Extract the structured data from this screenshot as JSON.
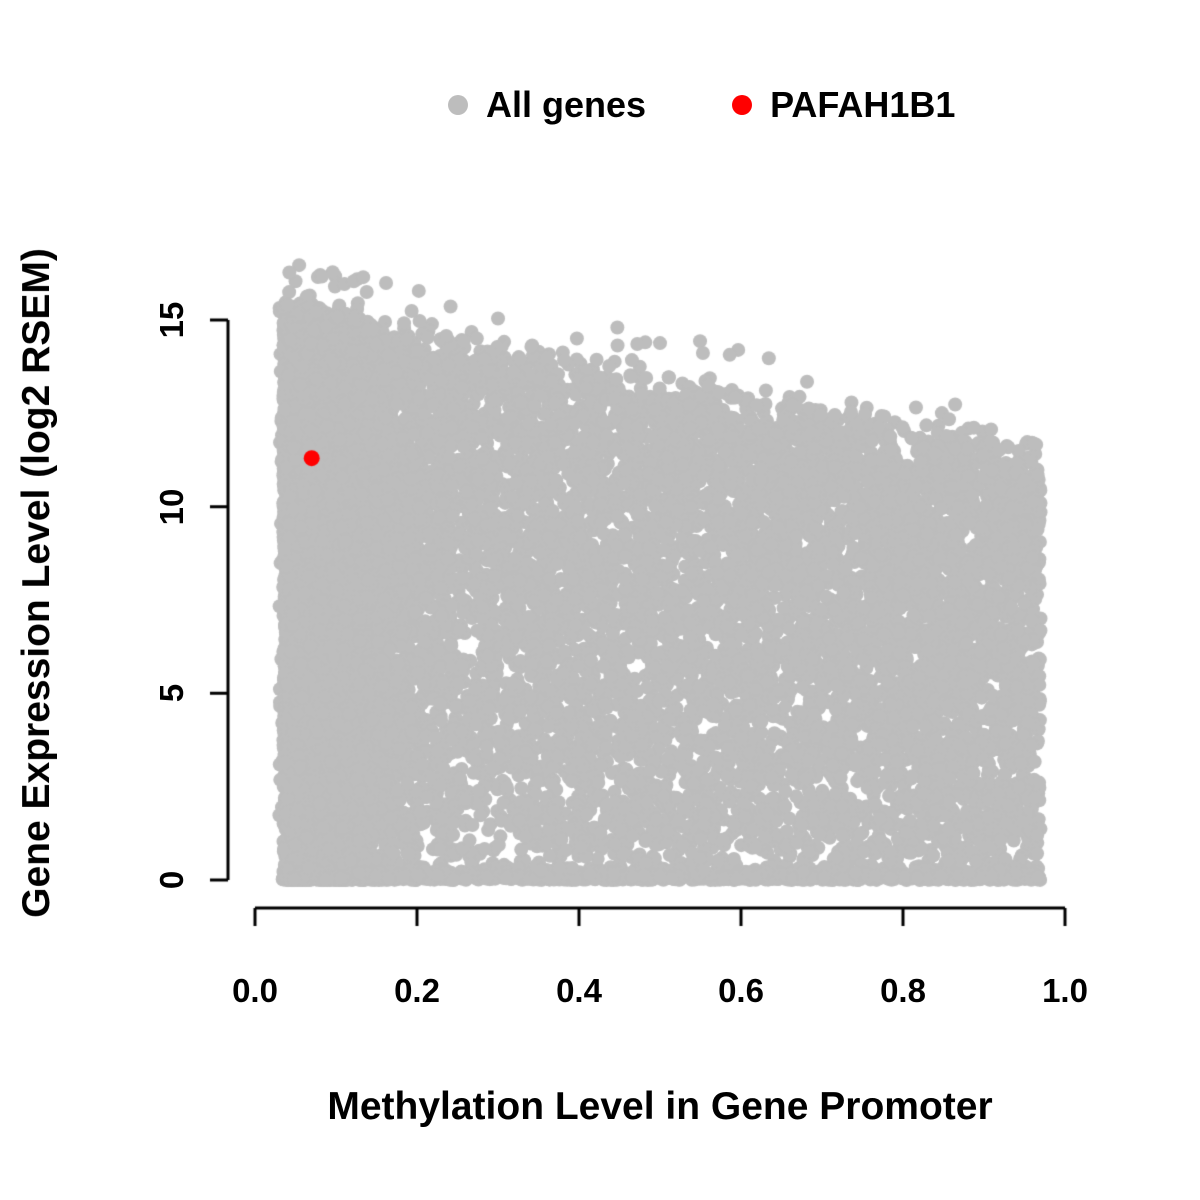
{
  "chart_data": {
    "type": "scatter",
    "title": "",
    "xlabel": "Methylation Level in Gene Promoter",
    "ylabel": "Gene Expression Level (log2 RSEM)",
    "xlim": [
      0.0,
      1.0
    ],
    "ylim": [
      0,
      16.8
    ],
    "grid": false,
    "legend_position": "top",
    "x_ticks": [
      "0.0",
      "0.2",
      "0.4",
      "0.6",
      "0.8",
      "1.0"
    ],
    "x_tick_values": [
      0.0,
      0.2,
      0.4,
      0.6,
      0.8,
      1.0
    ],
    "y_ticks": [
      "0",
      "5",
      "10",
      "15"
    ],
    "y_tick_values": [
      0,
      5,
      10,
      15
    ],
    "legend": [
      {
        "label": "All genes",
        "color": "#bdbdbd"
      },
      {
        "label": "PAFAH1B1",
        "color": "#ff0000"
      }
    ],
    "series": [
      {
        "name": "All genes",
        "color": "#bdbdbd",
        "generated": true,
        "point_count": 18000,
        "seed": 42,
        "x_range": [
          0.02,
          0.97
        ],
        "y_range": [
          0,
          16.6
        ],
        "upper_envelope": "y ≈ 15.4 − 4.0·x (dense cloud below envelope, concentrated at low methylation, dense strip at y ≈ 0)"
      },
      {
        "name": "PAFAH1B1",
        "color": "#ff0000",
        "points": [
          {
            "x": 0.07,
            "y": 11.3
          }
        ]
      }
    ]
  }
}
